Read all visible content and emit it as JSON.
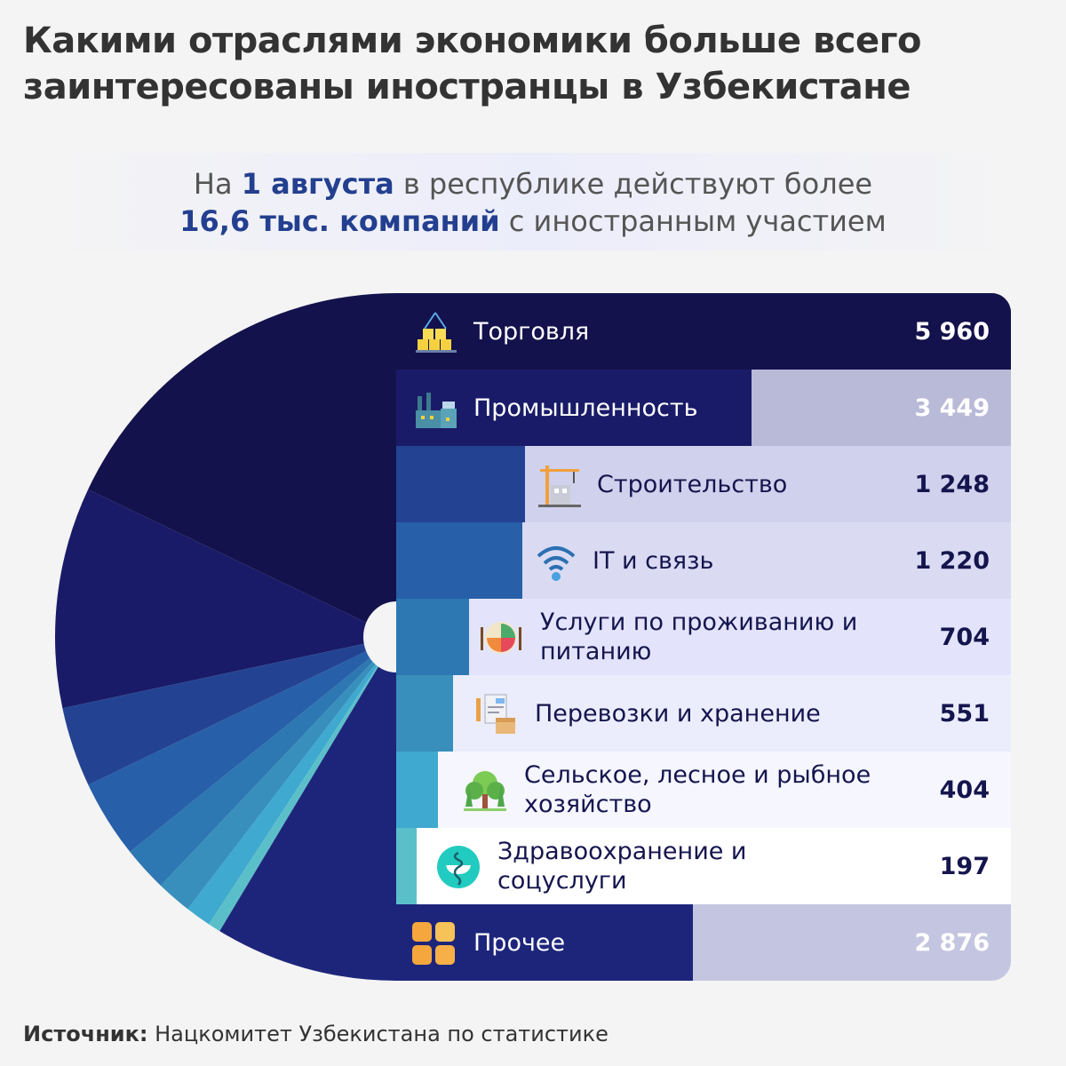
{
  "title": "Какими отраслями экономики больше всего заинтересованы иностранцы в Узбекистане",
  "subtitle": {
    "p1": "На ",
    "b1": "1 августа",
    "p2": " в республике действуют более",
    "b2": "16,6 тыс. компаний",
    "p3": " с иностранным участием"
  },
  "chart_data": {
    "type": "pie+bar",
    "categories": [
      "Торговля",
      "Промышленность",
      "Строительство",
      "IT и связь",
      "Услуги по проживанию и питанию",
      "Перевозки и хранение",
      "Сельское, лесное и рыбное хозяйство",
      "Здравоохранение и соцуслуги",
      "Прочее"
    ],
    "values": [
      5960,
      3449,
      1248,
      1220,
      704,
      551,
      404,
      197,
      2876
    ],
    "value_labels": [
      "5 960",
      "3 449",
      "1 248",
      "1 220",
      "704",
      "551",
      "404",
      "197",
      "2 876"
    ],
    "colors": [
      "#13124c",
      "#191b68",
      "#234392",
      "#275fa8",
      "#2d77b2",
      "#388fbb",
      "#3fa9cf",
      "#5bbfca",
      "#1d257b"
    ],
    "row_backgrounds": [
      "#13124c",
      "#b9b9d8",
      "#d0d1ec",
      "#dadbf3",
      "#e3e4fb",
      "#ecedfc",
      "#f5f6fe",
      "#ffffff",
      "#c4c5e0"
    ],
    "icons": [
      "boxes-icon",
      "factory-icon",
      "crane-icon",
      "wifi-icon",
      "food-plate-icon",
      "document-box-icon",
      "trees-icon",
      "medical-bowl-icon",
      "grid-icon"
    ]
  },
  "source": {
    "label": "Источник:",
    "text": " Нацкомитет Узбекистана по статистике"
  }
}
